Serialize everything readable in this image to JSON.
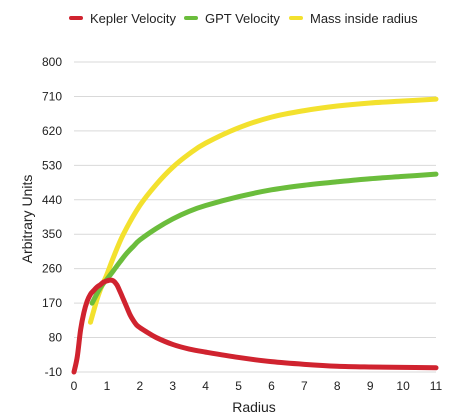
{
  "chart_data": {
    "type": "line",
    "title": "",
    "xlabel": "Radius",
    "ylabel": "Arbitrary Units",
    "xlim": [
      0,
      11
    ],
    "ylim": [
      -10,
      800
    ],
    "x_ticks": [
      0,
      1,
      2,
      3,
      4,
      5,
      6,
      7,
      8,
      9,
      10,
      11
    ],
    "y_ticks": [
      -10,
      80,
      170,
      260,
      350,
      440,
      530,
      620,
      710,
      800
    ],
    "grid": "horizontal",
    "legend": "top",
    "series": [
      {
        "name": "Kepler Velocity",
        "color": "#d0232f",
        "x": [
          0,
          0.1,
          0.2,
          0.3,
          0.4,
          0.5,
          0.6,
          0.7,
          0.8,
          0.9,
          1.0,
          1.1,
          1.2,
          1.3,
          1.4,
          1.5,
          1.6,
          1.7,
          1.8,
          1.9,
          2.0,
          2.2,
          2.5,
          3,
          3.5,
          4,
          5,
          6,
          7,
          8,
          9,
          10,
          11
        ],
        "y": [
          -10,
          30,
          100,
          145,
          175,
          193,
          203,
          212,
          218,
          225,
          228,
          230,
          228,
          218,
          200,
          180,
          160,
          140,
          125,
          113,
          106,
          95,
          80,
          62,
          50,
          42,
          28,
          17,
          10,
          5,
          3,
          2,
          1
        ]
      },
      {
        "name": "GPT Velocity",
        "color": "#6bbd3c",
        "x": [
          0.55,
          0.7,
          0.8,
          0.9,
          1.0,
          1.2,
          1.4,
          1.6,
          1.8,
          2.0,
          2.5,
          3,
          3.5,
          4,
          5,
          6,
          7,
          8,
          9,
          10,
          11
        ],
        "y": [
          170,
          195,
          210,
          222,
          232,
          255,
          278,
          300,
          318,
          335,
          365,
          390,
          410,
          425,
          448,
          466,
          478,
          487,
          495,
          501,
          507
        ]
      },
      {
        "name": "Mass inside radius",
        "color": "#f3e12e",
        "x": [
          0.5,
          0.7,
          0.8,
          0.9,
          1.0,
          1.2,
          1.5,
          2.0,
          2.5,
          3,
          3.5,
          4,
          5,
          6,
          7,
          8,
          9,
          10,
          11
        ],
        "y": [
          120,
          180,
          205,
          225,
          245,
          290,
          350,
          425,
          480,
          525,
          560,
          588,
          628,
          656,
          673,
          685,
          693,
          698,
          703
        ]
      }
    ]
  }
}
